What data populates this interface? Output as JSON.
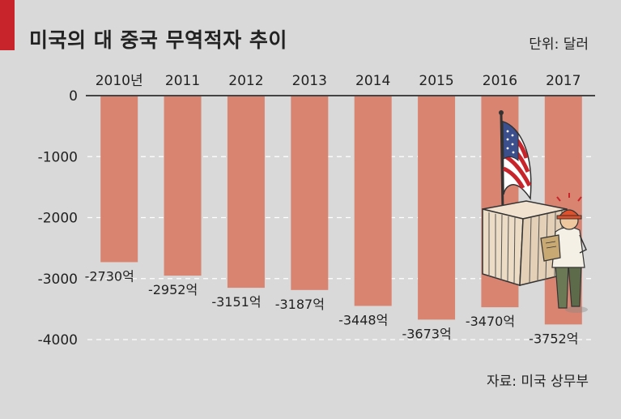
{
  "header": {
    "title": "미국의 대 중국 무역적자 추이",
    "unit": "단위: 달러"
  },
  "footer": {
    "source": "자료: 미국 상무부"
  },
  "colors": {
    "bar": "#d98471",
    "background": "#d9d9d9",
    "accent": "#c8242b",
    "axis": "#444444",
    "grid": "#ffffff"
  },
  "chart_data": {
    "type": "bar",
    "categories": [
      "2010년",
      "2011",
      "2012",
      "2013",
      "2014",
      "2015",
      "2016",
      "2017"
    ],
    "values": [
      -2730,
      -2952,
      -3151,
      -3187,
      -3448,
      -3673,
      -3470,
      -3752
    ],
    "data_labels": [
      "-2730억",
      "-2952억",
      "-3151억",
      "-3187억",
      "-3448억",
      "-3673억",
      "-3470억",
      "-3752억"
    ],
    "yticks": [
      0,
      -1000,
      -2000,
      -3000,
      -4000
    ],
    "ylim": [
      -4000,
      0
    ],
    "grid": true,
    "illustration": "worker-with-flag-and-container"
  }
}
